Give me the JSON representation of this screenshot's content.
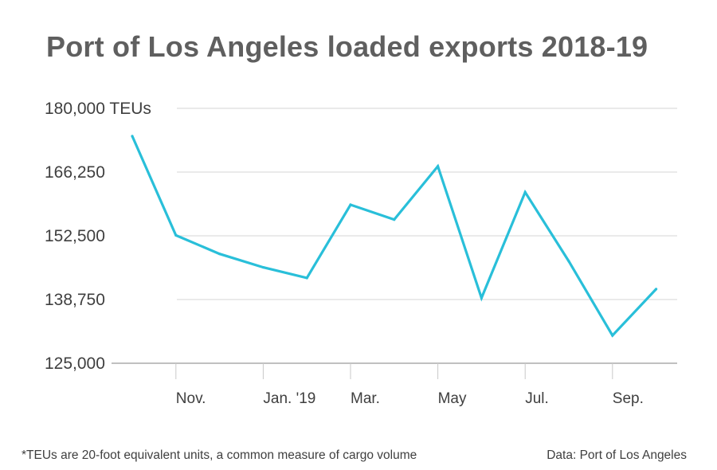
{
  "chart_data": {
    "type": "line",
    "title": "Port of Los Angeles loaded exports 2018-19",
    "xlabel": "",
    "ylabel": "",
    "y_unit_label": "180,000 TEUs",
    "ylim": [
      125000,
      180000
    ],
    "y_ticks": [
      125000,
      138750,
      152500,
      166250,
      180000
    ],
    "y_tick_labels": [
      "125,000",
      "138,750",
      "152,500",
      "166,250",
      "180,000 TEUs"
    ],
    "x_tick_labels": [
      "Nov.",
      "Jan. '19",
      "Mar.",
      "May",
      "Jul.",
      "Sep."
    ],
    "x_tick_months": [
      "2018-11",
      "2019-01",
      "2019-03",
      "2019-05",
      "2019-07",
      "2019-09"
    ],
    "grid": true,
    "line_color": "#29bfd9",
    "series": [
      {
        "name": "Loaded exports",
        "x": [
          "2018-10",
          "2018-11",
          "2018-12",
          "2019-01",
          "2019-02",
          "2019-03",
          "2019-04",
          "2019-05",
          "2019-06",
          "2019-07",
          "2019-08",
          "2019-09",
          "2019-10"
        ],
        "values": [
          174000,
          152600,
          148600,
          145700,
          143400,
          159200,
          156000,
          167500,
          139100,
          161900,
          147000,
          131000,
          141000
        ]
      }
    ]
  },
  "footnote": "*TEUs are 20-foot equivalent units, a common measure of cargo volume",
  "source": "Data: Port of Los Angeles"
}
